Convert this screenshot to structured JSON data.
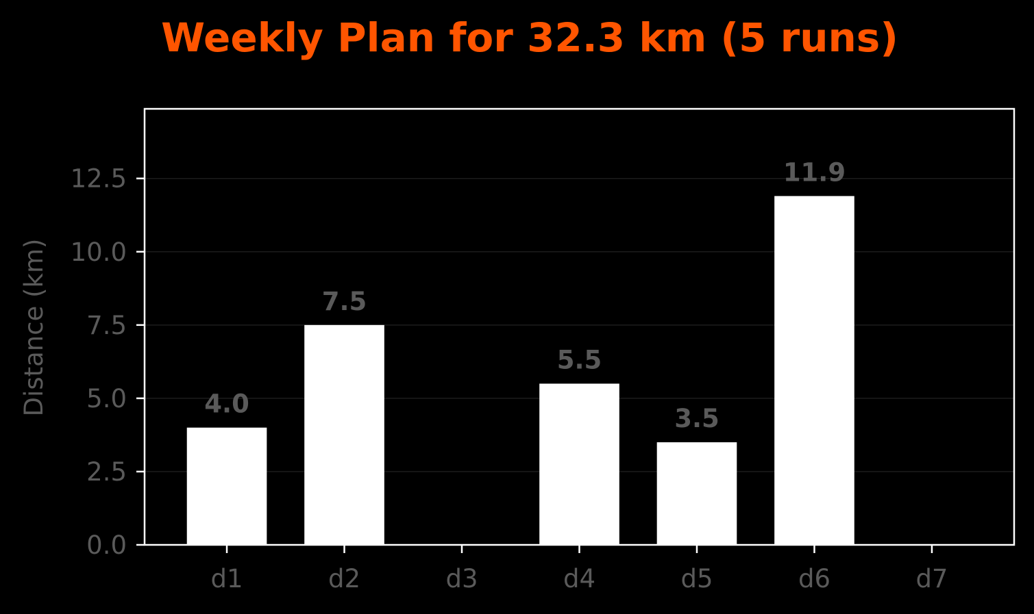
{
  "colors": {
    "background": "#000000",
    "title": "#ff5500",
    "bar": "#ffffff",
    "frame": "#ffffff",
    "tick_text": "#5a5a5a",
    "value_label": "#5a5a5a",
    "grid": "#1c1c1c"
  },
  "chart_data": {
    "type": "bar",
    "title": "Weekly Plan for 32.3 km (5 runs)",
    "xlabel": "",
    "ylabel": "Distance (km)",
    "categories": [
      "d1",
      "d2",
      "d3",
      "d4",
      "d5",
      "d6",
      "d7"
    ],
    "values": [
      4.0,
      7.5,
      0,
      5.5,
      3.5,
      11.9,
      0
    ],
    "value_labels": [
      "4.0",
      "7.5",
      "",
      "5.5",
      "3.5",
      "11.9",
      ""
    ],
    "ylim": [
      0,
      14.875
    ],
    "yticks": [
      0.0,
      2.5,
      5.0,
      7.5,
      10.0,
      12.5
    ],
    "ytick_labels": [
      "0.0",
      "2.5",
      "5.0",
      "7.5",
      "10.0",
      "12.5"
    ],
    "grid": "horizontal",
    "legend": "none"
  }
}
